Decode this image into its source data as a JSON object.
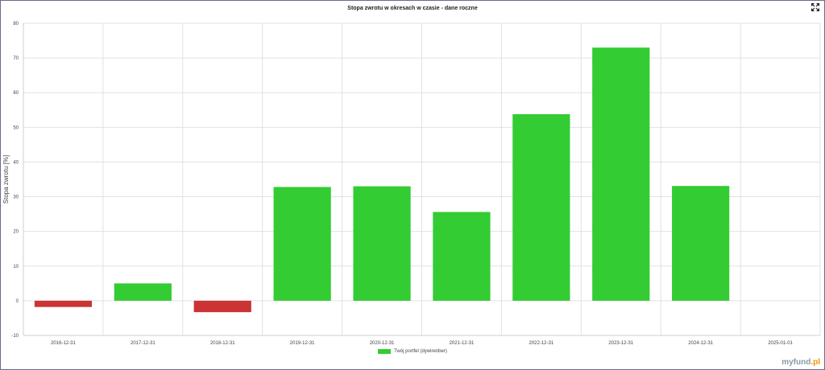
{
  "chart_data": {
    "type": "bar",
    "title": "Stopa zwrotu w okresach w czasie - dane roczne",
    "ylabel": "Stopa zwrotu [%]",
    "xlabel": "",
    "ylim": [
      -10,
      80
    ],
    "yticks": [
      80,
      70,
      60,
      50,
      40,
      30,
      20,
      10,
      0,
      -10
    ],
    "grid": true,
    "legend_position": "bottom",
    "categories": [
      "2016-12-31",
      "2017-12-31",
      "2018-12-31",
      "2019-12-31",
      "2020-12-31",
      "2021-12-31",
      "2022-12-31",
      "2023-12-31",
      "2024-12-31",
      "2025-01-01"
    ],
    "series": [
      {
        "name": "Twój portfel (dywirenber)",
        "values": [
          -1.8,
          5.0,
          -3.3,
          32.8,
          33.0,
          25.6,
          53.8,
          73.0,
          33.1,
          0
        ]
      }
    ],
    "colors": {
      "positive": "#33cc33",
      "negative": "#cc3333"
    }
  },
  "header": {
    "expand_icon": "expand-icon"
  },
  "brand": {
    "logo_text": "myfund",
    "logo_suffix": ".pl"
  }
}
